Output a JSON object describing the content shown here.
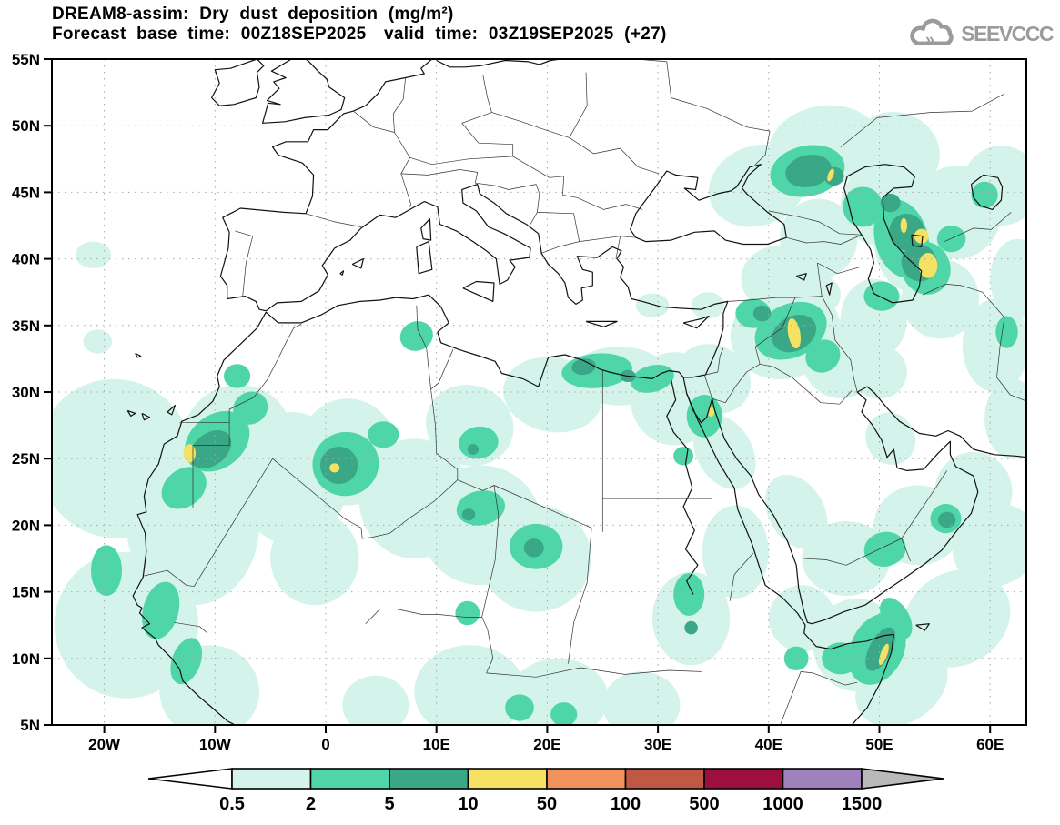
{
  "header": {
    "title": "DREAM8-assim: Dry dust deposition (mg/m²)",
    "forecast_base": "Forecast base time: 00Z18SEP2025",
    "valid_time": "valid time: 03Z19SEP2025 (+27)"
  },
  "logo": {
    "text": "SEEVCCC"
  },
  "map": {
    "lat_ticks": [
      "55N",
      "50N",
      "45N",
      "40N",
      "35N",
      "30N",
      "25N",
      "20N",
      "15N",
      "10N",
      "5N"
    ],
    "lon_ticks": [
      "20W",
      "10W",
      "0",
      "10E",
      "20E",
      "30E",
      "40E",
      "50E",
      "60E"
    ]
  },
  "colorbar": {
    "labels": [
      "0.5",
      "2",
      "5",
      "10",
      "50",
      "100",
      "500",
      "1000",
      "1500"
    ],
    "levels_mg_m2": [
      0.5,
      2,
      5,
      10,
      50,
      100,
      500,
      1000,
      1500
    ],
    "segment_colors": [
      "#ffffff",
      "#d4f3ea",
      "#4fd6a8",
      "#3aa887",
      "#f5e163",
      "#f0915e",
      "#bf5844",
      "#9c0f3e",
      "#9f82bd",
      "#b9b9b9"
    ],
    "below_min_color": "#ffffff",
    "above_max_color": "#b9b9b9",
    "outline_color": "#000000"
  }
}
